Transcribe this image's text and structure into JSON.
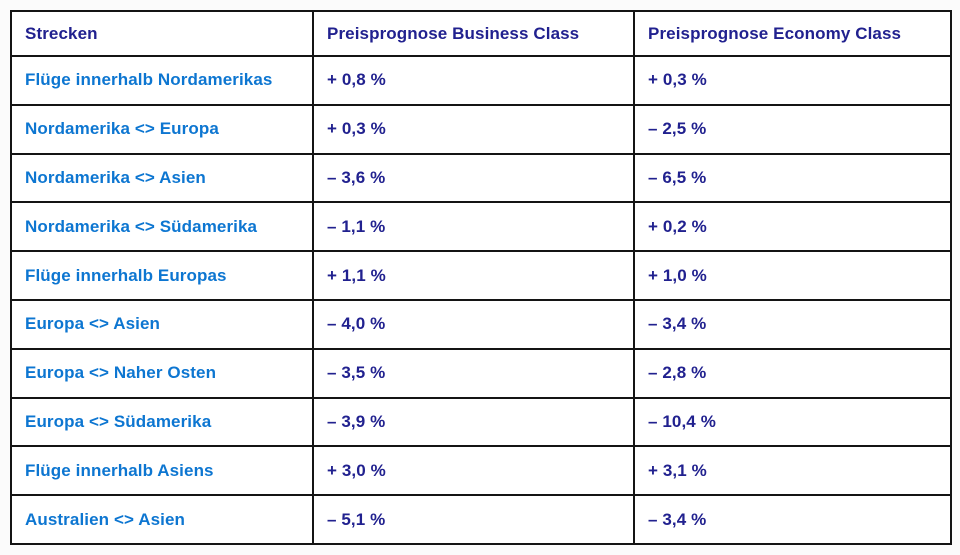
{
  "chart_data": {
    "type": "table",
    "columns": [
      "Strecken",
      "Preisprognose Business Class",
      "Preisprognose Economy Class"
    ],
    "rows": [
      [
        "Flüge innerhalb Nordamerikas",
        "+ 0,8 %",
        "+ 0,3 %"
      ],
      [
        "Nordamerika <> Europa",
        "+ 0,3 %",
        "– 2,5 %"
      ],
      [
        "Nordamerika <> Asien",
        "– 3,6 %",
        "– 6,5 %"
      ],
      [
        "Nordamerika <> Südamerika",
        "– 1,1 %",
        "+ 0,2 %"
      ],
      [
        "Flüge innerhalb Europas",
        "+ 1,1 %",
        "+ 1,0 %"
      ],
      [
        "Europa <> Asien",
        "– 4,0 %",
        "– 3,4 %"
      ],
      [
        "Europa <> Naher Osten",
        "– 3,5 %",
        "– 2,8 %"
      ],
      [
        "Europa <> Südamerika",
        "– 3,9 %",
        "– 10,4 %"
      ],
      [
        "Flüge innerhalb Asiens",
        "+ 3,0 %",
        "+ 3,1 %"
      ],
      [
        "Australien <> Asien",
        "– 5,1 %",
        "– 3,4 %"
      ]
    ]
  },
  "colors": {
    "header_text": "#21218f",
    "value_text": "#21218f",
    "route_text": "#0d76d1",
    "border": "#141414",
    "cell_bg": "#ffffff",
    "page_bg": "#fbfbfb"
  }
}
